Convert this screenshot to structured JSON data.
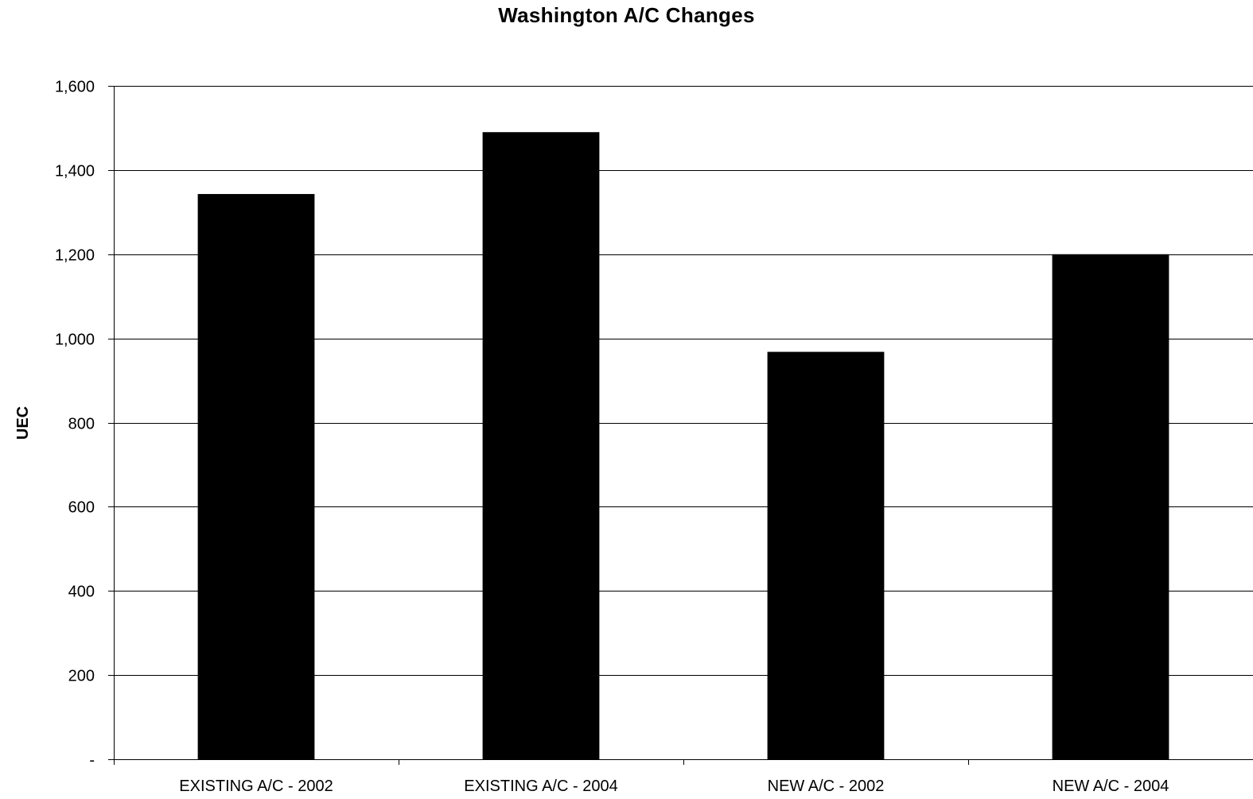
{
  "chart_data": {
    "type": "bar",
    "title": "Washington A/C Changes",
    "xlabel": "",
    "ylabel": "UEC",
    "categories": [
      "EXISTING A/C - 2002",
      "EXISTING A/C - 2004",
      "NEW A/C - 2002",
      "NEW A/C - 2004"
    ],
    "values": [
      1343,
      1490,
      968,
      1200
    ],
    "ylim": [
      0,
      1600
    ],
    "yticks": [
      {
        "value": 0,
        "label": "-"
      },
      {
        "value": 200,
        "label": "200"
      },
      {
        "value": 400,
        "label": "400"
      },
      {
        "value": 600,
        "label": "600"
      },
      {
        "value": 800,
        "label": "800"
      },
      {
        "value": 1000,
        "label": "1,000"
      },
      {
        "value": 1200,
        "label": "1,200"
      },
      {
        "value": 1400,
        "label": "1,400"
      },
      {
        "value": 1600,
        "label": "1,600"
      }
    ],
    "grid": true,
    "legend": "none",
    "bar_color": "#000000",
    "grid_color": "#000000"
  }
}
